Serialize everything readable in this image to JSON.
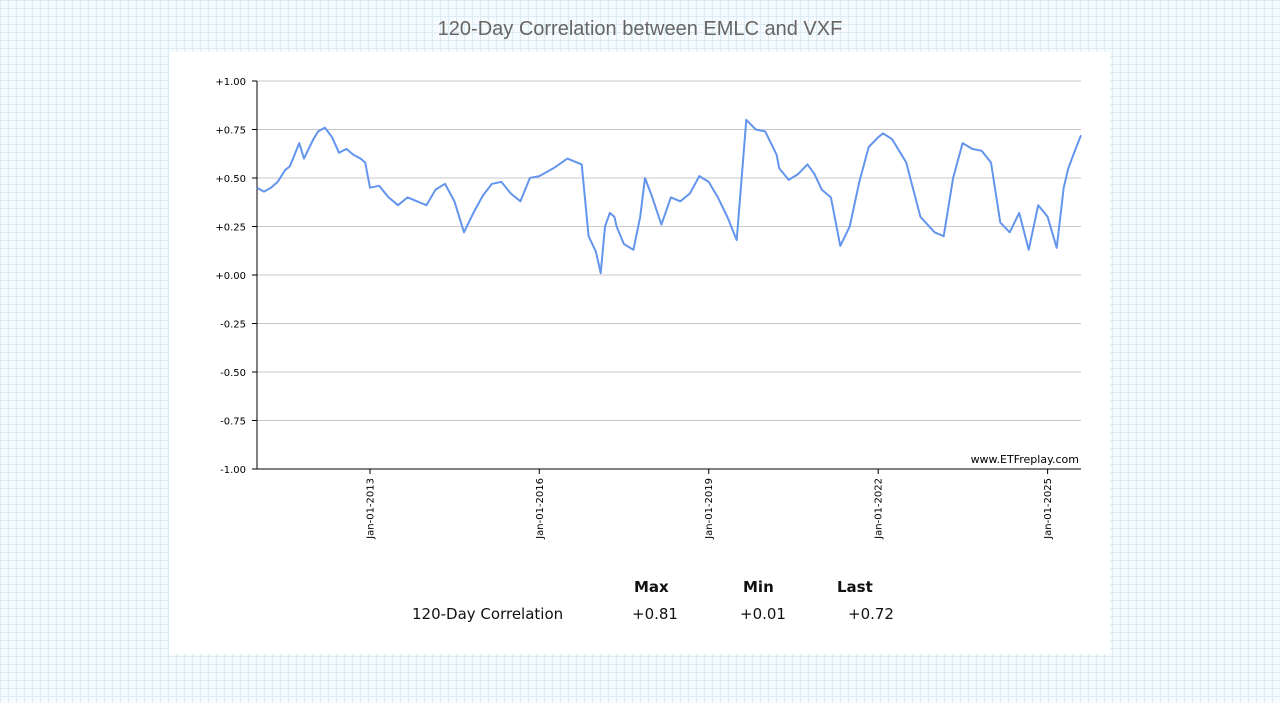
{
  "title": "120-Day Correlation between EMLC and VXF",
  "chart_data": {
    "type": "line",
    "title": "120-Day Correlation between EMLC and VXF",
    "xlabel": "",
    "ylabel": "",
    "ylim": [
      -1.0,
      1.0
    ],
    "y_ticks": [
      "+1.00",
      "+0.75",
      "+0.50",
      "+0.25",
      "+0.00",
      "-0.25",
      "-0.50",
      "-0.75",
      "-1.00"
    ],
    "x_ticks": [
      "Jan-01-2013",
      "Jan-01-2016",
      "Jan-01-2019",
      "Jan-01-2022",
      "Jan-01-2025"
    ],
    "x_range": [
      "2011-01-01",
      "2025-08-05"
    ],
    "grid": "horizontal",
    "watermark": "www.ETFreplay.com",
    "line_color": "#6495ed",
    "series": [
      {
        "x": [
          "2011-01-01",
          "2011-02-15",
          "2011-04-01",
          "2011-05-15",
          "2011-07-01",
          "2011-08-01",
          "2011-09-01",
          "2011-10-01",
          "2011-11-01",
          "2011-12-01",
          "2012-01-01",
          "2012-02-01",
          "2012-03-15",
          "2012-05-01",
          "2012-06-15",
          "2012-08-01",
          "2012-09-15",
          "2012-11-01",
          "2012-12-01",
          "2013-01-01",
          "2013-03-01",
          "2013-05-01",
          "2013-07-01",
          "2013-09-01",
          "2013-11-01",
          "2014-01-01",
          "2014-03-01",
          "2014-05-01",
          "2014-07-01",
          "2014-09-01",
          "2014-11-01",
          "2015-01-01",
          "2015-03-01",
          "2015-05-01",
          "2015-07-01",
          "2015-09-01",
          "2015-11-01",
          "2016-01-01",
          "2016-04-01",
          "2016-07-01",
          "2016-10-01",
          "2016-11-15",
          "2017-01-01",
          "2017-02-01",
          "2017-03-01",
          "2017-04-01",
          "2017-05-01",
          "2017-05-15",
          "2017-07-01",
          "2017-09-01",
          "2017-10-15",
          "2017-11-15",
          "2018-01-01",
          "2018-03-01",
          "2018-05-01",
          "2018-07-01",
          "2018-09-01",
          "2018-11-01",
          "2019-01-01",
          "2019-03-01",
          "2019-05-01",
          "2019-07-01",
          "2019-09-01",
          "2019-11-01",
          "2020-01-01",
          "2020-03-15",
          "2020-04-01",
          "2020-06-01",
          "2020-08-01",
          "2020-10-01",
          "2020-11-15",
          "2021-01-01",
          "2021-03-01",
          "2021-05-01",
          "2021-07-01",
          "2021-09-01",
          "2021-11-01",
          "2022-01-01",
          "2022-02-01",
          "2022-04-01",
          "2022-07-01",
          "2022-10-01",
          "2023-01-01",
          "2023-03-01",
          "2023-05-01",
          "2023-07-01",
          "2023-09-01",
          "2023-11-01",
          "2024-01-01",
          "2024-03-01",
          "2024-05-01",
          "2024-07-01",
          "2024-09-01",
          "2024-11-01",
          "2025-01-01",
          "2025-03-01",
          "2025-04-15",
          "2025-05-15",
          "2025-07-01",
          "2025-08-05"
        ],
        "y": [
          0.45,
          0.43,
          0.45,
          0.48,
          0.54,
          0.56,
          0.62,
          0.68,
          0.6,
          0.65,
          0.7,
          0.74,
          0.76,
          0.71,
          0.63,
          0.65,
          0.62,
          0.6,
          0.58,
          0.45,
          0.46,
          0.4,
          0.36,
          0.4,
          0.38,
          0.36,
          0.44,
          0.47,
          0.38,
          0.22,
          0.32,
          0.41,
          0.47,
          0.48,
          0.42,
          0.38,
          0.5,
          0.51,
          0.55,
          0.6,
          0.57,
          0.2,
          0.12,
          0.01,
          0.25,
          0.32,
          0.3,
          0.25,
          0.16,
          0.13,
          0.3,
          0.5,
          0.4,
          0.26,
          0.4,
          0.38,
          0.42,
          0.51,
          0.48,
          0.4,
          0.3,
          0.18,
          0.8,
          0.75,
          0.74,
          0.62,
          0.55,
          0.49,
          0.52,
          0.57,
          0.52,
          0.44,
          0.4,
          0.15,
          0.25,
          0.48,
          0.66,
          0.71,
          0.73,
          0.7,
          0.58,
          0.3,
          0.22,
          0.2,
          0.5,
          0.68,
          0.65,
          0.64,
          0.58,
          0.27,
          0.22,
          0.32,
          0.13,
          0.36,
          0.3,
          0.14,
          0.45,
          0.55,
          0.65,
          0.72
        ]
      }
    ]
  },
  "stats": {
    "headers": [
      "Max",
      "Min",
      "Last"
    ],
    "row_label": "120-Day Correlation",
    "values": [
      "+0.81",
      "+0.01",
      "+0.72"
    ]
  }
}
